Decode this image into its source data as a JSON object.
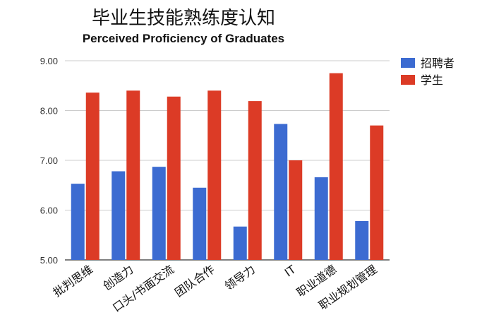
{
  "chart_data": {
    "type": "bar",
    "title": "毕业生技能熟练度认知",
    "subtitle": "Perceived Proficiency of Graduates",
    "xlabel": "",
    "ylabel": "",
    "categories": [
      "批判思维",
      "创造力",
      "口头/书面交流",
      "团队合作",
      "领导力",
      "IT",
      "职业道德",
      "职业规划管理"
    ],
    "series": [
      {
        "name": "招聘者",
        "color": "#3c6bd1",
        "values": [
          6.53,
          6.78,
          6.87,
          6.45,
          5.67,
          7.73,
          6.66,
          5.78
        ]
      },
      {
        "name": "学生",
        "color": "#dc3b26",
        "values": [
          8.36,
          8.4,
          8.28,
          8.4,
          8.19,
          7.0,
          8.75,
          7.7
        ]
      }
    ],
    "ylim": [
      5.0,
      9.0
    ],
    "yticks": [
      "5.00",
      "6.00",
      "7.00",
      "8.00",
      "9.00"
    ],
    "grid": true,
    "legend_position": "top-right"
  }
}
